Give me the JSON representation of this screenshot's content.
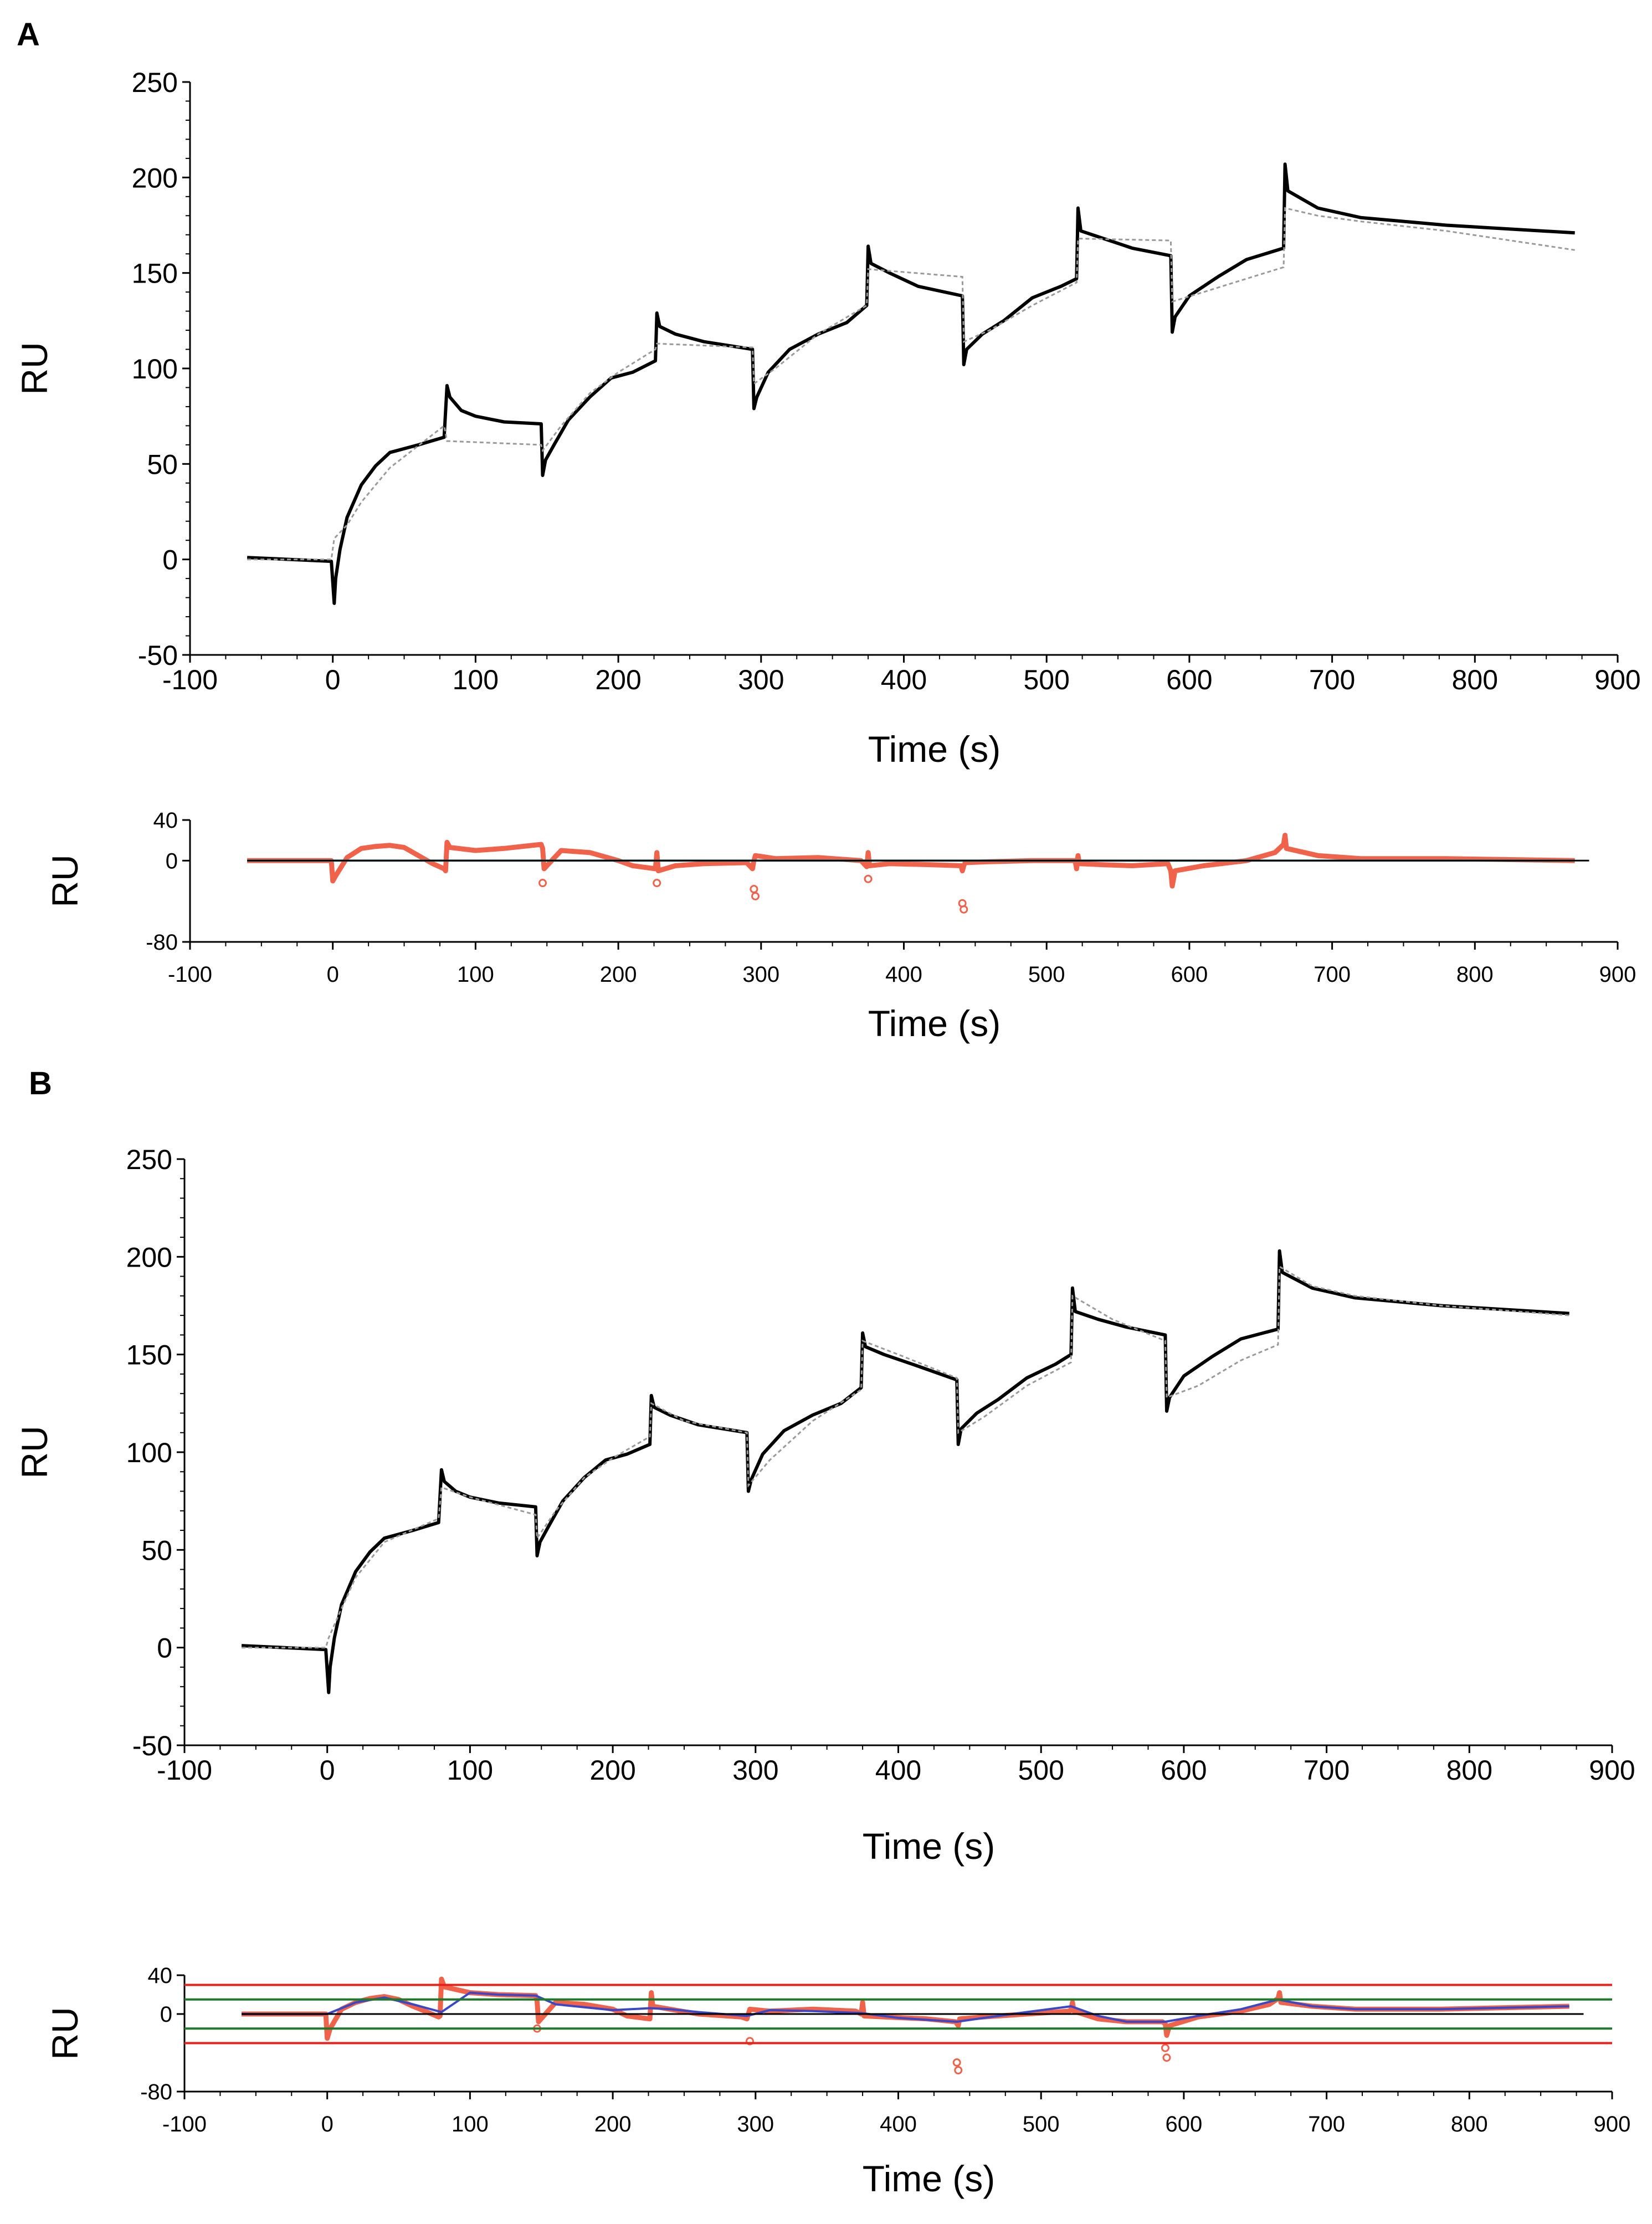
{
  "figure": {
    "panels": [
      {
        "label": "A"
      },
      {
        "label": "B"
      }
    ]
  },
  "colors": {
    "observed": "#000000",
    "fit": "#9a9a9a",
    "residual": "#f0634a",
    "residual_fit_line": "#4aa0b0",
    "zero_line": "#000000",
    "limit_outer": "#e8201a",
    "limit_inner": "#1d7a2a",
    "residual_smooth": "#3a47c9"
  },
  "chart_data": [
    {
      "id": "A-sensorgram",
      "panel": "A",
      "type": "line",
      "title": "",
      "xlabel": "Time (s)",
      "ylabel": "RU",
      "xlim": [
        -100,
        900
      ],
      "ylim": [
        -50,
        250
      ],
      "xticks": [
        -100,
        0,
        100,
        200,
        300,
        400,
        500,
        600,
        700,
        800,
        900
      ],
      "yticks": [
        -50,
        0,
        50,
        100,
        150,
        200,
        250
      ],
      "grid": false,
      "series": [
        {
          "style": "observed",
          "x": [
            -60,
            -1,
            1,
            2,
            5,
            10,
            20,
            30,
            40,
            60,
            78,
            80,
            82,
            90,
            100,
            120,
            146,
            147,
            149,
            155,
            165,
            180,
            195,
            210,
            226,
            227,
            229,
            240,
            260,
            294,
            295,
            297,
            305,
            320,
            340,
            360,
            374,
            375,
            377,
            390,
            410,
            441,
            442,
            444,
            455,
            470,
            490,
            510,
            521,
            522,
            524,
            540,
            560,
            587,
            588,
            590,
            600,
            620,
            640,
            666,
            667,
            669,
            690,
            720,
            780,
            870
          ],
          "y": [
            1,
            -1,
            -23,
            -10,
            5,
            22,
            39,
            49,
            56,
            60,
            64,
            91,
            85,
            78,
            75,
            72,
            71,
            44,
            52,
            60,
            73,
            85,
            95,
            98,
            104,
            129,
            122,
            118,
            114,
            110,
            79,
            85,
            98,
            110,
            118,
            124,
            133,
            164,
            155,
            150,
            143,
            138,
            102,
            110,
            118,
            125,
            137,
            143,
            147,
            184,
            172,
            168,
            163,
            159,
            119,
            127,
            138,
            148,
            157,
            163,
            207,
            193,
            184,
            179,
            175,
            171
          ]
        },
        {
          "style": "fit",
          "x": [
            -60,
            -1,
            1,
            10,
            20,
            40,
            78,
            80,
            146,
            147,
            160,
            180,
            200,
            226,
            227,
            294,
            295,
            310,
            340,
            374,
            375,
            441,
            442,
            460,
            490,
            521,
            522,
            587,
            588,
            610,
            640,
            666,
            667,
            690,
            720,
            780,
            870
          ],
          "y": [
            0,
            0,
            11,
            18,
            30,
            48,
            70,
            62,
            60,
            57,
            70,
            87,
            98,
            110,
            113,
            111,
            92,
            100,
            118,
            133,
            152,
            148,
            114,
            120,
            133,
            145,
            168,
            167,
            135,
            140,
            147,
            153,
            184,
            180,
            177,
            172,
            162
          ]
        }
      ]
    },
    {
      "id": "A-residuals",
      "panel": "A",
      "type": "scatter",
      "xlabel": "Time (s)",
      "ylabel": "RU",
      "xlim": [
        -100,
        900
      ],
      "ylim": [
        -80,
        40
      ],
      "xticks": [
        -100,
        0,
        100,
        200,
        300,
        400,
        500,
        600,
        700,
        800,
        900
      ],
      "yticks": [
        -80,
        0,
        40
      ],
      "grid": false,
      "series": [
        {
          "style": "residual",
          "x": [
            -60,
            -1,
            0,
            2,
            10,
            20,
            30,
            40,
            50,
            60,
            70,
            78,
            79,
            80,
            82,
            100,
            120,
            146,
            147,
            148,
            160,
            180,
            200,
            210,
            226,
            227,
            228,
            240,
            260,
            290,
            294,
            295,
            296,
            310,
            340,
            370,
            374,
            375,
            376,
            390,
            420,
            440,
            441,
            442,
            443,
            460,
            490,
            520,
            521,
            522,
            523,
            540,
            560,
            585,
            587,
            588,
            590,
            610,
            640,
            660,
            666,
            667,
            668,
            690,
            720,
            780,
            870
          ],
          "y": [
            0,
            0,
            -20,
            -15,
            3,
            12,
            14,
            15,
            13,
            5,
            -3,
            -8,
            -10,
            18,
            13,
            10,
            12,
            16,
            12,
            -8,
            10,
            8,
            0,
            -5,
            -8,
            8,
            -10,
            -5,
            -3,
            -2,
            -8,
            0,
            5,
            2,
            3,
            0,
            -6,
            8,
            -5,
            -3,
            -4,
            -5,
            -10,
            -5,
            -2,
            -1,
            0,
            0,
            -8,
            5,
            -3,
            -4,
            -5,
            -3,
            -10,
            -25,
            -10,
            -5,
            0,
            8,
            16,
            25,
            12,
            5,
            2,
            2,
            0
          ]
        },
        {
          "style": "outlier",
          "x": [
            147,
            227,
            295,
            296,
            375,
            441,
            442
          ],
          "y": [
            -22,
            -22,
            -28,
            -35,
            -18,
            -42,
            -48
          ]
        },
        {
          "style": "residual_fit",
          "x": [
            -60,
            870
          ],
          "y": [
            0,
            0
          ]
        },
        {
          "style": "zero",
          "x": [
            -60,
            880
          ],
          "y": [
            0,
            0
          ]
        }
      ]
    },
    {
      "id": "B-sensorgram",
      "panel": "B",
      "type": "line",
      "title": "",
      "xlabel": "Time (s)",
      "ylabel": "RU",
      "xlim": [
        -100,
        900
      ],
      "ylim": [
        -50,
        250
      ],
      "xticks": [
        -100,
        0,
        100,
        200,
        300,
        400,
        500,
        600,
        700,
        800,
        900
      ],
      "yticks": [
        -50,
        0,
        50,
        100,
        150,
        200,
        250
      ],
      "grid": false,
      "series": [
        {
          "style": "observed",
          "x": [
            -60,
            -1,
            1,
            2,
            5,
            10,
            20,
            30,
            40,
            60,
            78,
            80,
            82,
            90,
            100,
            120,
            146,
            147,
            149,
            155,
            165,
            180,
            195,
            210,
            226,
            227,
            229,
            240,
            260,
            294,
            295,
            297,
            305,
            320,
            340,
            360,
            374,
            375,
            377,
            390,
            410,
            441,
            442,
            444,
            455,
            470,
            490,
            510,
            521,
            522,
            524,
            540,
            560,
            587,
            588,
            590,
            600,
            620,
            640,
            666,
            667,
            669,
            690,
            720,
            780,
            870
          ],
          "y": [
            1,
            -1,
            -23,
            -10,
            5,
            22,
            39,
            49,
            56,
            60,
            64,
            91,
            85,
            80,
            77,
            74,
            72,
            47,
            54,
            62,
            75,
            87,
            96,
            99,
            104,
            129,
            123,
            119,
            114,
            110,
            80,
            86,
            99,
            111,
            119,
            125,
            133,
            161,
            154,
            150,
            145,
            137,
            104,
            112,
            120,
            127,
            138,
            145,
            150,
            184,
            172,
            168,
            164,
            160,
            121,
            128,
            139,
            149,
            158,
            163,
            203,
            192,
            184,
            179,
            175,
            171
          ]
        },
        {
          "style": "fit",
          "x": [
            -60,
            -1,
            1,
            10,
            20,
            40,
            78,
            80,
            100,
            146,
            147,
            160,
            180,
            200,
            226,
            227,
            250,
            294,
            295,
            310,
            340,
            374,
            375,
            400,
            441,
            442,
            460,
            490,
            521,
            522,
            550,
            587,
            588,
            610,
            640,
            666,
            667,
            690,
            720,
            780,
            870
          ],
          "y": [
            0,
            0,
            5,
            20,
            36,
            54,
            66,
            82,
            77,
            68,
            56,
            70,
            87,
            97,
            108,
            125,
            116,
            110,
            83,
            96,
            116,
            132,
            157,
            150,
            138,
            110,
            118,
            134,
            146,
            180,
            168,
            157,
            128,
            134,
            147,
            155,
            195,
            185,
            180,
            175,
            170
          ]
        }
      ]
    },
    {
      "id": "B-residuals",
      "panel": "B",
      "type": "scatter",
      "xlabel": "Time (s)",
      "ylabel": "RU",
      "xlim": [
        -100,
        900
      ],
      "ylim": [
        -80,
        40
      ],
      "xticks": [
        -100,
        0,
        100,
        200,
        300,
        400,
        500,
        600,
        700,
        800,
        900
      ],
      "yticks": [
        -80,
        0,
        40
      ],
      "grid": false,
      "series": [
        {
          "style": "residual",
          "x": [
            -60,
            -1,
            0,
            2,
            10,
            20,
            30,
            40,
            50,
            60,
            70,
            78,
            79,
            80,
            82,
            100,
            120,
            146,
            147,
            148,
            160,
            180,
            200,
            210,
            226,
            227,
            228,
            240,
            260,
            290,
            294,
            295,
            296,
            310,
            340,
            370,
            374,
            375,
            376,
            390,
            420,
            440,
            441,
            442,
            443,
            460,
            490,
            520,
            521,
            522,
            523,
            540,
            560,
            585,
            587,
            588,
            590,
            610,
            640,
            660,
            666,
            667,
            668,
            690,
            720,
            780,
            870
          ],
          "y": [
            0,
            0,
            -25,
            -15,
            5,
            12,
            16,
            18,
            15,
            8,
            2,
            -3,
            -2,
            36,
            28,
            22,
            20,
            19,
            13,
            -8,
            12,
            10,
            5,
            -2,
            -5,
            22,
            8,
            5,
            0,
            -3,
            -5,
            0,
            5,
            3,
            5,
            3,
            0,
            12,
            -2,
            -3,
            -5,
            -8,
            -10,
            -12,
            -5,
            -3,
            0,
            3,
            5,
            12,
            3,
            -5,
            -8,
            -8,
            -10,
            -22,
            -12,
            -3,
            3,
            10,
            16,
            22,
            12,
            8,
            5,
            5,
            8
          ]
        },
        {
          "style": "outlier",
          "x": [
            147,
            296,
            441,
            442,
            587,
            588
          ],
          "y": [
            -15,
            -28,
            -50,
            -58,
            -35,
            -45
          ]
        },
        {
          "style": "residual_smooth",
          "x": [
            -60,
            0,
            20,
            40,
            60,
            80,
            100,
            120,
            146,
            160,
            200,
            226,
            240,
            260,
            294,
            310,
            340,
            374,
            400,
            441,
            460,
            490,
            521,
            540,
            560,
            587,
            610,
            640,
            666,
            690,
            720,
            780,
            870
          ],
          "y": [
            0,
            0,
            12,
            17,
            10,
            2,
            22,
            20,
            19,
            10,
            4,
            6,
            5,
            2,
            -2,
            4,
            3,
            1,
            -4,
            -8,
            -4,
            2,
            8,
            -2,
            -8,
            -8,
            -2,
            5,
            15,
            8,
            5,
            5,
            8
          ]
        },
        {
          "style": "zero",
          "x": [
            -60,
            880
          ],
          "y": [
            0,
            0
          ]
        },
        {
          "style": "limit_outer",
          "x": [
            -100,
            900
          ],
          "y": [
            30,
            30
          ]
        },
        {
          "style": "limit_outer",
          "x": [
            -100,
            900
          ],
          "y": [
            -30,
            -30
          ]
        },
        {
          "style": "limit_inner",
          "x": [
            -100,
            900
          ],
          "y": [
            15,
            15
          ]
        },
        {
          "style": "limit_inner",
          "x": [
            -100,
            900
          ],
          "y": [
            -15,
            -15
          ]
        }
      ]
    }
  ]
}
